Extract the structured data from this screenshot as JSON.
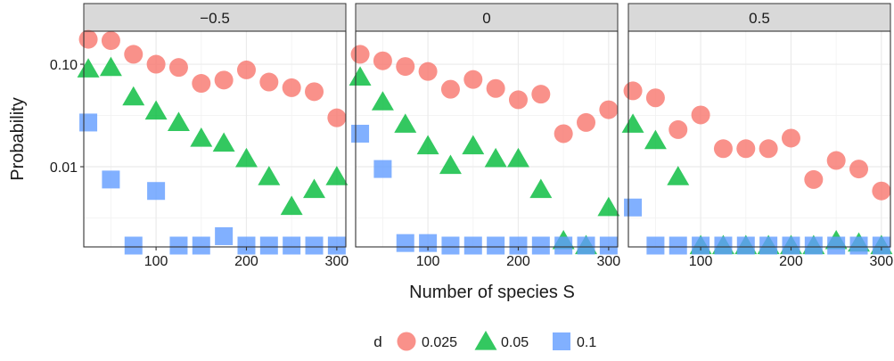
{
  "chart_data": {
    "type": "scatter",
    "xlabel": "Number of species S",
    "ylabel": "Probability",
    "y_scale": "log10",
    "xlim": [
      20,
      310
    ],
    "ylim": [
      0.00165,
      0.21
    ],
    "x_ticks": [
      100,
      200,
      300
    ],
    "x_tick_labels": [
      "100",
      "200",
      "300"
    ],
    "y_ticks": [
      0.01,
      0.1
    ],
    "y_tick_labels": [
      "0.01",
      "0.10"
    ],
    "grid": true,
    "legend": {
      "title": "d",
      "position": "bottom",
      "entries": [
        {
          "label": "0.025",
          "shape": "circle",
          "color": "#F8766D"
        },
        {
          "label": "0.05",
          "shape": "triangle",
          "color": "#00BA38"
        },
        {
          "label": "0.1",
          "shape": "square",
          "color": "#619CFF"
        }
      ]
    },
    "panels": [
      {
        "label": "−0.5",
        "series": [
          {
            "name": "0.025",
            "x": [
              25,
              50,
              75,
              100,
              125,
              150,
              175,
              200,
              225,
              250,
              275,
              300
            ],
            "y": [
              0.175,
              0.17,
              0.125,
              0.1,
              0.093,
              0.065,
              0.07,
              0.088,
              0.067,
              0.059,
              0.054,
              0.03
            ]
          },
          {
            "name": "0.05",
            "x": [
              25,
              50,
              75,
              100,
              125,
              150,
              175,
              200,
              225,
              250,
              275,
              300
            ],
            "y": [
              0.09,
              0.093,
              0.048,
              0.035,
              0.027,
              0.019,
              0.017,
              0.012,
              0.008,
              0.0041,
              0.006,
              0.008
            ]
          },
          {
            "name": "0.1",
            "x": [
              25,
              50,
              75,
              100,
              125,
              150,
              175,
              200,
              225,
              250,
              275,
              300
            ],
            "y": [
              0.027,
              0.0075,
              0.0017,
              0.0058,
              0.0017,
              0.0017,
              0.0021,
              0.0017,
              0.0017,
              0.0017,
              0.0017,
              0.0017
            ]
          }
        ]
      },
      {
        "label": "0",
        "series": [
          {
            "name": "0.025",
            "x": [
              25,
              50,
              75,
              100,
              125,
              150,
              175,
              200,
              225,
              250,
              275,
              300
            ],
            "y": [
              0.125,
              0.108,
              0.095,
              0.085,
              0.057,
              0.071,
              0.058,
              0.045,
              0.051,
              0.021,
              0.027,
              0.036
            ]
          },
          {
            "name": "0.05",
            "x": [
              25,
              50,
              75,
              100,
              125,
              150,
              175,
              200,
              225,
              250,
              275,
              300
            ],
            "y": [
              0.075,
              0.043,
              0.026,
              0.016,
              0.0103,
              0.016,
              0.012,
              0.012,
              0.006,
              0.0019,
              0.0017,
              0.004
            ]
          },
          {
            "name": "0.1",
            "x": [
              25,
              50,
              75,
              100,
              125,
              150,
              175,
              200,
              225,
              250,
              275,
              300
            ],
            "y": [
              0.021,
              0.0095,
              0.0018,
              0.0018,
              0.0017,
              0.0017,
              0.0017,
              0.0017,
              0.0017,
              0.0017,
              0.0017,
              0.0017
            ]
          }
        ]
      },
      {
        "label": "0.5",
        "series": [
          {
            "name": "0.025",
            "x": [
              25,
              50,
              75,
              100,
              125,
              150,
              175,
              200,
              225,
              250,
              275,
              300
            ],
            "y": [
              0.055,
              0.047,
              0.023,
              0.032,
              0.015,
              0.015,
              0.015,
              0.019,
              0.0075,
              0.0115,
              0.0095,
              0.0058
            ]
          },
          {
            "name": "0.05",
            "x": [
              25,
              50,
              75,
              100,
              125,
              150,
              175,
              200,
              225,
              250,
              275,
              300
            ],
            "y": [
              0.026,
              0.018,
              0.008,
              0.0017,
              0.0017,
              0.0017,
              0.0017,
              0.0017,
              0.0017,
              0.0019,
              0.0018,
              0.0017
            ]
          },
          {
            "name": "0.1",
            "x": [
              25,
              50,
              75,
              100,
              125,
              150,
              175,
              200,
              225,
              250,
              275,
              300
            ],
            "y": [
              0.004,
              0.0017,
              0.0017,
              0.0017,
              0.0017,
              0.0017,
              0.0017,
              0.0017,
              0.0017,
              0.0017,
              0.0017,
              0.0017
            ]
          }
        ]
      }
    ]
  }
}
